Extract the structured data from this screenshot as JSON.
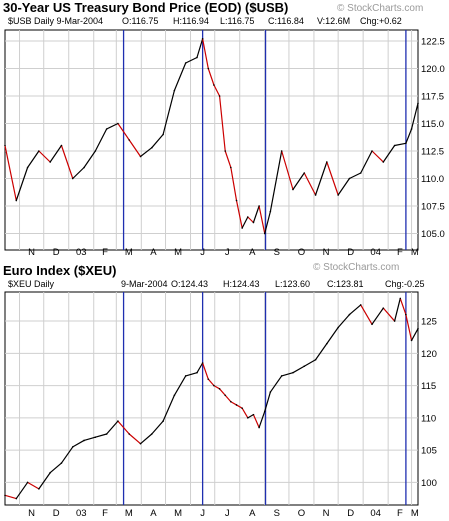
{
  "colors": {
    "price_line": "#000000",
    "up_segment": "#000000",
    "down_segment": "#cc0000",
    "marker_lines": "#1f2fb0",
    "grid": "#cfcfcf",
    "watermark": "#9a9a9a"
  },
  "watermark": "© StockCharts.com",
  "top_panel": {
    "title": "30-Year US Treasury Bond Price (EOD) ($USB)",
    "info": {
      "symbol": "$USB Daily 9-Mar-2004",
      "open": "O:116.75",
      "high": "H:116.94",
      "low": "L:116.75",
      "close": "C:116.84",
      "volume": "V:12.6M",
      "change": "Chg:+0.62"
    }
  },
  "bottom_panel": {
    "title": "Euro Index ($XEU)",
    "info": {
      "symbol": "$XEU Daily",
      "date": "9-Mar-2004",
      "open": "O:124.43",
      "high": "H:124.43",
      "low": "L:123.60",
      "close": "C:123.81",
      "change": "Chg:-0.25"
    }
  },
  "x_axis_labels": [
    "N",
    "D",
    "03",
    "F",
    "M",
    "A",
    "M",
    "J",
    "J",
    "A",
    "S",
    "O",
    "N",
    "D",
    "04",
    "F",
    "M"
  ],
  "chart_data": [
    {
      "type": "line",
      "title": "30-Year US Treasury Bond Price (EOD) ($USB)",
      "x_range": [
        "2002-10-14",
        "2004-03-09"
      ],
      "ylim": [
        103.5,
        123.5
      ],
      "y_ticks": [
        105.0,
        107.5,
        110.0,
        112.5,
        115.0,
        117.5,
        120.0,
        122.5
      ],
      "grid": true,
      "x": [
        "2002-10-14",
        "2002-10-28",
        "2002-11-11",
        "2002-11-25",
        "2002-12-09",
        "2002-12-23",
        "2003-01-06",
        "2003-01-20",
        "2003-02-03",
        "2003-02-17",
        "2003-03-03",
        "2003-03-17",
        "2003-03-31",
        "2003-04-14",
        "2003-04-28",
        "2003-05-12",
        "2003-05-26",
        "2003-06-09",
        "2003-06-16",
        "2003-06-23",
        "2003-06-30",
        "2003-07-07",
        "2003-07-14",
        "2003-07-21",
        "2003-07-28",
        "2003-08-04",
        "2003-08-11",
        "2003-08-18",
        "2003-08-25",
        "2003-09-01",
        "2003-09-08",
        "2003-09-22",
        "2003-10-06",
        "2003-10-20",
        "2003-11-03",
        "2003-11-17",
        "2003-12-01",
        "2003-12-15",
        "2003-12-29",
        "2004-01-12",
        "2004-01-26",
        "2004-02-09",
        "2004-02-23",
        "2004-03-01",
        "2004-03-09"
      ],
      "series": [
        {
          "values": [
            113.0,
            108.0,
            111.0,
            112.5,
            111.5,
            113.0,
            110.0,
            111.0,
            112.5,
            114.5,
            115.0,
            113.5,
            112.0,
            112.8,
            114.0,
            118.0,
            120.5,
            121.0,
            122.7,
            120.0,
            118.5,
            117.5,
            112.5,
            111.0,
            108.0,
            105.5,
            106.5,
            106.0,
            107.5,
            105.0,
            107.0,
            112.5,
            109.0,
            110.5,
            108.5,
            111.5,
            108.5,
            110.0,
            110.5,
            112.5,
            111.5,
            113.0,
            113.2,
            114.5,
            116.84
          ]
        }
      ],
      "vertical_markers": [
        "2003-03-10",
        "2003-06-16",
        "2003-09-02",
        "2004-02-23"
      ]
    },
    {
      "type": "line",
      "title": "Euro Index ($XEU)",
      "x_range": [
        "2002-10-14",
        "2004-03-09"
      ],
      "ylim": [
        96.5,
        129.5
      ],
      "y_ticks": [
        100,
        105,
        110,
        115,
        120,
        125
      ],
      "grid": true,
      "x": [
        "2002-10-14",
        "2002-10-28",
        "2002-11-11",
        "2002-11-25",
        "2002-12-09",
        "2002-12-23",
        "2003-01-06",
        "2003-01-20",
        "2003-02-03",
        "2003-02-17",
        "2003-03-03",
        "2003-03-17",
        "2003-03-31",
        "2003-04-14",
        "2003-04-28",
        "2003-05-12",
        "2003-05-26",
        "2003-06-09",
        "2003-06-16",
        "2003-06-23",
        "2003-06-30",
        "2003-07-07",
        "2003-07-14",
        "2003-07-21",
        "2003-07-28",
        "2003-08-04",
        "2003-08-11",
        "2003-08-18",
        "2003-08-25",
        "2003-09-01",
        "2003-09-08",
        "2003-09-22",
        "2003-10-06",
        "2003-10-20",
        "2003-11-03",
        "2003-11-17",
        "2003-12-01",
        "2003-12-15",
        "2003-12-29",
        "2004-01-12",
        "2004-01-26",
        "2004-02-09",
        "2004-02-16",
        "2004-02-23",
        "2004-03-01",
        "2004-03-09"
      ],
      "series": [
        {
          "values": [
            98.0,
            97.5,
            100.0,
            99.0,
            101.5,
            103.0,
            105.5,
            106.5,
            107.0,
            107.5,
            109.5,
            107.5,
            106.0,
            107.5,
            109.5,
            113.5,
            116.5,
            117.0,
            118.5,
            116.0,
            115.0,
            114.5,
            113.5,
            112.5,
            112.0,
            111.5,
            110.0,
            110.5,
            108.5,
            111.0,
            114.0,
            116.5,
            117.0,
            118.0,
            119.0,
            121.5,
            124.0,
            126.0,
            127.5,
            124.5,
            127.0,
            125.0,
            128.5,
            126.0,
            122.0,
            123.81
          ]
        }
      ],
      "vertical_markers": [
        "2003-03-10",
        "2003-06-16",
        "2003-09-02",
        "2004-02-23"
      ]
    }
  ]
}
